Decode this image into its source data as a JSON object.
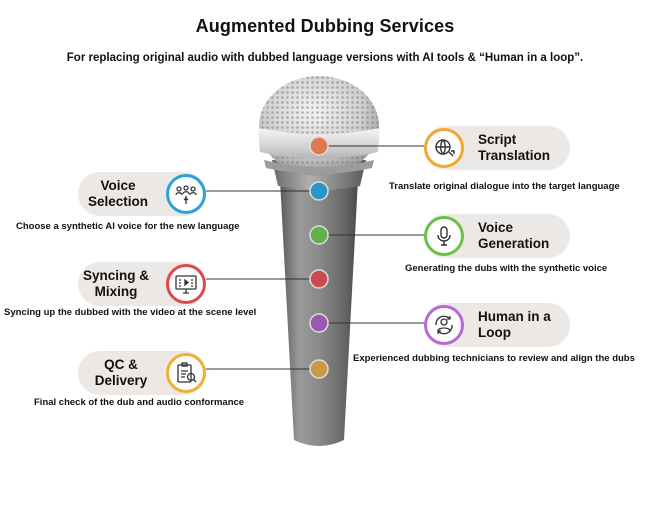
{
  "header": {
    "title": "Augmented Dubbing Services",
    "subtitle": "For replacing original audio with dubbed language versions with AI tools & “Human in a loop”."
  },
  "steps": [
    {
      "label": "Script Translation",
      "description": "Translate original dialogue into the target language",
      "color": "#f0a830",
      "dot_color": "#e0794f",
      "icon": "globe-translation-icon"
    },
    {
      "label": "Voice Selection",
      "description": "Choose a synthetic AI voice for the new language",
      "color": "#2aa3d8",
      "dot_color": "#2a95c8",
      "icon": "people-select-icon"
    },
    {
      "label": "Voice Generation",
      "description": "Generating the dubs with the synthetic voice",
      "color": "#6cc04a",
      "dot_color": "#62b04a",
      "icon": "microphone-icon"
    },
    {
      "label": "Syncing & Mixing",
      "description": "Syncing up the dubbed with the video at the scene level",
      "color": "#e04848",
      "dot_color": "#c94a50",
      "icon": "video-monitor-icon"
    },
    {
      "label": "Human in a Loop",
      "description": "Experienced dubbing technicians to review and align the dubs",
      "color": "#b868d8",
      "dot_color": "#9a58b0",
      "icon": "person-loop-icon"
    },
    {
      "label": "QC & Delivery",
      "description": "Final check of the dub and audio conformance",
      "color": "#f0b030",
      "dot_color": "#c79a48",
      "icon": "clipboard-check-icon"
    }
  ]
}
